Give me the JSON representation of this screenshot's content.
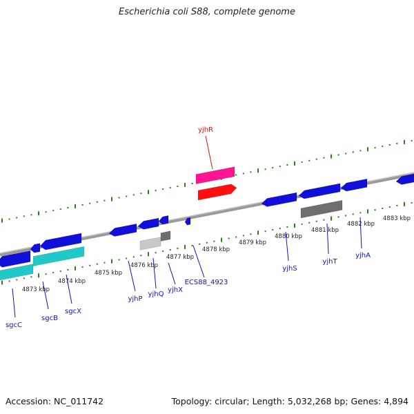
{
  "title": "Escherichia coli S88, complete genome",
  "footer": {
    "accession": "Accession: NC_011742",
    "summary": "Topology: circular; Length: 5,032,268 bp; Genes: 4,894"
  },
  "colors": {
    "backbone": "#8a8a8a",
    "tick": "#2e7d1a",
    "gene_blue": "#1010d8",
    "gene_cyan": "#20c8c8",
    "gene_gray": "#6e6e6e",
    "gene_lightgray": "#c8c8c8",
    "gene_pink": "#ff1493",
    "gene_red": "#ff1010",
    "label_blue": "#1010c0",
    "label_red": "#e01010"
  },
  "kbp_labels": [
    {
      "text": "4873 kbp"
    },
    {
      "text": "4874 kbp"
    },
    {
      "text": "4875 kbp"
    },
    {
      "text": "4876 kbp"
    },
    {
      "text": "4877 kbp"
    },
    {
      "text": "4878 kbp"
    },
    {
      "text": "4879 kbp"
    },
    {
      "text": "4880 kbp"
    },
    {
      "text": "4881 kbp"
    },
    {
      "text": "4882 kbp"
    },
    {
      "text": "4883 kbp"
    }
  ],
  "genes": [
    {
      "name": "sgcC",
      "strand": "-"
    },
    {
      "name": "sgcB",
      "strand": "-"
    },
    {
      "name": "sgcX",
      "strand": "-"
    },
    {
      "name": "yjhP",
      "strand": "-"
    },
    {
      "name": "yjhQ",
      "strand": "-"
    },
    {
      "name": "yjhX",
      "strand": "-"
    },
    {
      "name": "ECS88_4923",
      "strand": "-"
    },
    {
      "name": "yjhR",
      "strand": "+"
    },
    {
      "name": "yjhS",
      "strand": "-"
    },
    {
      "name": "yjhT",
      "strand": "-"
    },
    {
      "name": "yjhA",
      "strand": "-"
    }
  ]
}
